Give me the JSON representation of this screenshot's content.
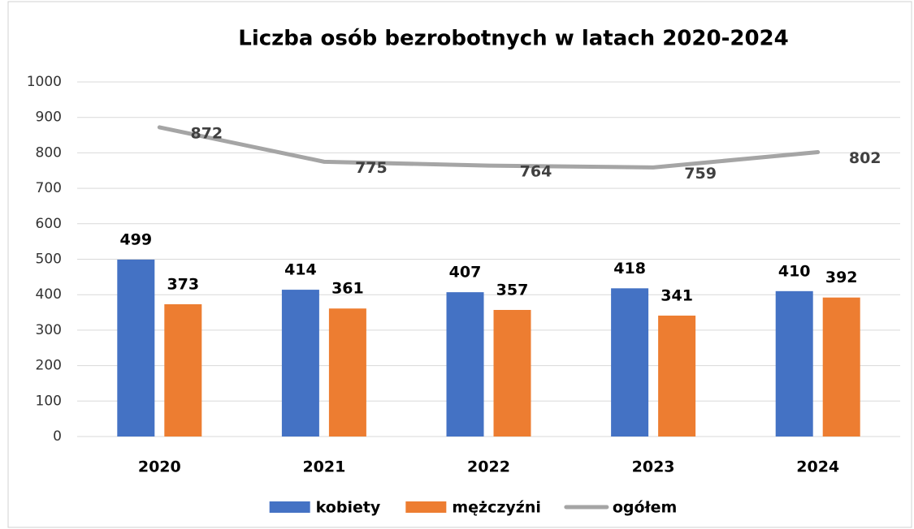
{
  "chart_data": {
    "type": "bar",
    "title": "Liczba osób bezrobotnych w latach 2020-2024",
    "categories": [
      "2020",
      "2021",
      "2022",
      "2023",
      "2024"
    ],
    "series": [
      {
        "name": "kobiety",
        "color": "#4472c4",
        "type": "bar",
        "values": [
          499,
          414,
          407,
          418,
          410
        ]
      },
      {
        "name": "mężczyźni",
        "color": "#ed7d31",
        "type": "bar",
        "values": [
          373,
          361,
          357,
          341,
          392
        ]
      },
      {
        "name": "ogółem",
        "color": "#a5a5a5",
        "type": "line",
        "values": [
          872,
          775,
          764,
          759,
          802
        ]
      }
    ],
    "ylim": [
      0,
      1000
    ],
    "yticks": [
      0,
      100,
      200,
      300,
      400,
      500,
      600,
      700,
      800,
      900,
      1000
    ],
    "grid": true,
    "legend": "bottom"
  }
}
